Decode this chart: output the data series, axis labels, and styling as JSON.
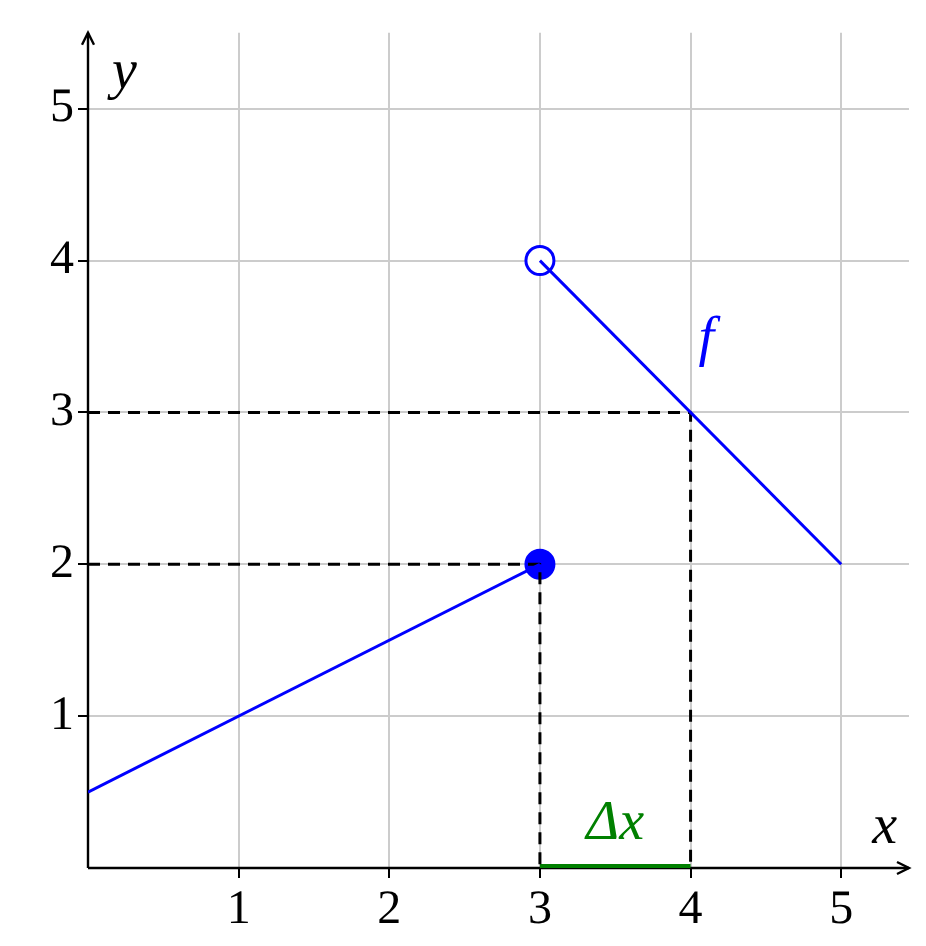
{
  "chart_data": {
    "type": "line",
    "xlabel": "x",
    "ylabel": "y",
    "xlim": [
      0,
      5.45
    ],
    "ylim": [
      0,
      5.5
    ],
    "xticks": [
      1,
      2,
      3,
      4,
      5
    ],
    "yticks": [
      1,
      2,
      3,
      4,
      5
    ],
    "grid": true,
    "legend": false,
    "line_style": "solid",
    "marker": "none",
    "series": [
      {
        "color": "#0000ff",
        "x": [
          0,
          3
        ],
        "values": [
          0.5,
          2
        ]
      },
      {
        "name": "f",
        "color": "#0000ff",
        "x": [
          3,
          5
        ],
        "values": [
          4,
          2
        ]
      },
      {
        "color": "#000000",
        "line_style": "dashed",
        "x": [
          0,
          4,
          4
        ],
        "values": [
          3,
          3,
          0
        ]
      },
      {
        "color": "#000000",
        "line_style": "dashed",
        "x": [
          0,
          3,
          3
        ],
        "values": [
          2,
          2,
          0
        ]
      },
      {
        "name": "Δx",
        "color": "#008000",
        "x": [
          3,
          4
        ],
        "values": [
          0,
          0
        ]
      },
      {
        "type": "scatter",
        "marker": "circle",
        "color": "#0000ff",
        "x": [
          3
        ],
        "values": [
          2
        ]
      },
      {
        "type": "scatter",
        "marker": "circle",
        "color": "#0000ff",
        "colors": [
          "#ffffff"
        ],
        "x": [
          3
        ],
        "values": [
          4
        ]
      }
    ]
  }
}
